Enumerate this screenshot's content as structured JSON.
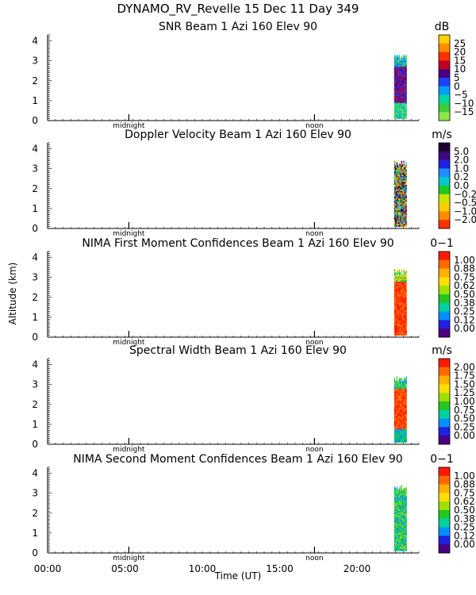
{
  "title": "DYNAMO_RV_Revelle  15 Dec 11 Day 349",
  "ylabel": "Altitude (km)",
  "xlabel": "Time (UT)",
  "x_ticks": [
    "00:00",
    "05:00",
    "10:00",
    "15:00",
    "20:00"
  ],
  "x_markers": [
    "midnight",
    "noon"
  ],
  "chart_data": [
    {
      "type": "heatmap",
      "title": "SNR Beam 1 Azi 160 Elev 90",
      "unit": "dB",
      "ylim": [
        0,
        4.3
      ],
      "y_ticks": [
        "0",
        "1",
        "2",
        "3",
        "4"
      ],
      "colorbar_labels": [
        "25",
        "20",
        "15",
        "10",
        "5",
        "0",
        "−5",
        "−10",
        "−15"
      ],
      "colors": [
        "#ffd000",
        "#ff8c00",
        "#ff3000",
        "#c00020",
        "#4b0082",
        "#1e40ff",
        "#00a0ff",
        "#00d8a0",
        "#3ccc3c",
        "#8ee64a"
      ],
      "data_time_range": [
        22.4,
        23.2
      ],
      "data_altitude_range": [
        0.1,
        3.3
      ]
    },
    {
      "type": "heatmap",
      "title": "Doppler Velocity Beam 1 Azi 160 Elev 90",
      "unit": "m/s",
      "ylim": [
        0,
        4.3
      ],
      "y_ticks": [
        "0",
        "1",
        "2",
        "3",
        "4"
      ],
      "colorbar_labels": [
        "5.0",
        "2.0",
        "1.0",
        "0.2",
        "0.0",
        "−0.2",
        "−0.5",
        "−1.0",
        "−2.0"
      ],
      "colors": [
        "#1a0030",
        "#3a0a80",
        "#2020e0",
        "#1e90ff",
        "#00c8c8",
        "#20c820",
        "#c8e600",
        "#ffd000",
        "#ff8c00",
        "#ff3000"
      ],
      "data_time_range": [
        22.4,
        23.2
      ],
      "data_altitude_range": [
        0.1,
        3.4
      ]
    },
    {
      "type": "heatmap",
      "title": "NIMA First Moment Confidences Beam 1 Azi 160 Elev 90",
      "unit": "0−1",
      "ylim": [
        0,
        4.3
      ],
      "y_ticks": [
        "0",
        "1",
        "2",
        "3",
        "4"
      ],
      "colorbar_labels": [
        "1.00",
        "0.88",
        "0.75",
        "0.62",
        "0.50",
        "0.38",
        "0.25",
        "0.12",
        "0.00"
      ],
      "colors": [
        "#ff1a00",
        "#ff6a00",
        "#ffb000",
        "#ffe000",
        "#a0e000",
        "#20c820",
        "#00d0a0",
        "#0090ff",
        "#2020e0",
        "#4b0082"
      ],
      "data_time_range": [
        22.4,
        23.2
      ],
      "data_altitude_range": [
        0.1,
        3.4
      ]
    },
    {
      "type": "heatmap",
      "title": "Spectral Width Beam 1 Azi 160 Elev 90",
      "unit": "m/s",
      "ylim": [
        0,
        4.3
      ],
      "y_ticks": [
        "0",
        "1",
        "2",
        "3",
        "4"
      ],
      "colorbar_labels": [
        "2.00",
        "1.75",
        "1.50",
        "1.25",
        "1.00",
        "0.75",
        "0.50",
        "0.25",
        "0.00"
      ],
      "colors": [
        "#ff1a00",
        "#ff6a00",
        "#ffb000",
        "#ffe000",
        "#a0e000",
        "#20c820",
        "#00d0a0",
        "#0090ff",
        "#2020e0",
        "#4b0082"
      ],
      "data_time_range": [
        22.4,
        23.2
      ],
      "data_altitude_range": [
        0.1,
        3.4
      ]
    },
    {
      "type": "heatmap",
      "title": "NIMA Second Moment Confidences Beam 1 Azi 160 Elev 90",
      "unit": "0−1",
      "ylim": [
        0,
        4.3
      ],
      "y_ticks": [
        "0",
        "1",
        "2",
        "3",
        "4"
      ],
      "colorbar_labels": [
        "1.00",
        "0.88",
        "0.75",
        "0.62",
        "0.50",
        "0.38",
        "0.25",
        "0.12",
        "0.00"
      ],
      "colors": [
        "#ff1a00",
        "#ff6a00",
        "#ffb000",
        "#ffe000",
        "#a0e000",
        "#20c820",
        "#00d0a0",
        "#0090ff",
        "#2020e0",
        "#4b0082"
      ],
      "data_time_range": [
        22.4,
        23.2
      ],
      "data_altitude_range": [
        0.1,
        3.4
      ]
    }
  ]
}
